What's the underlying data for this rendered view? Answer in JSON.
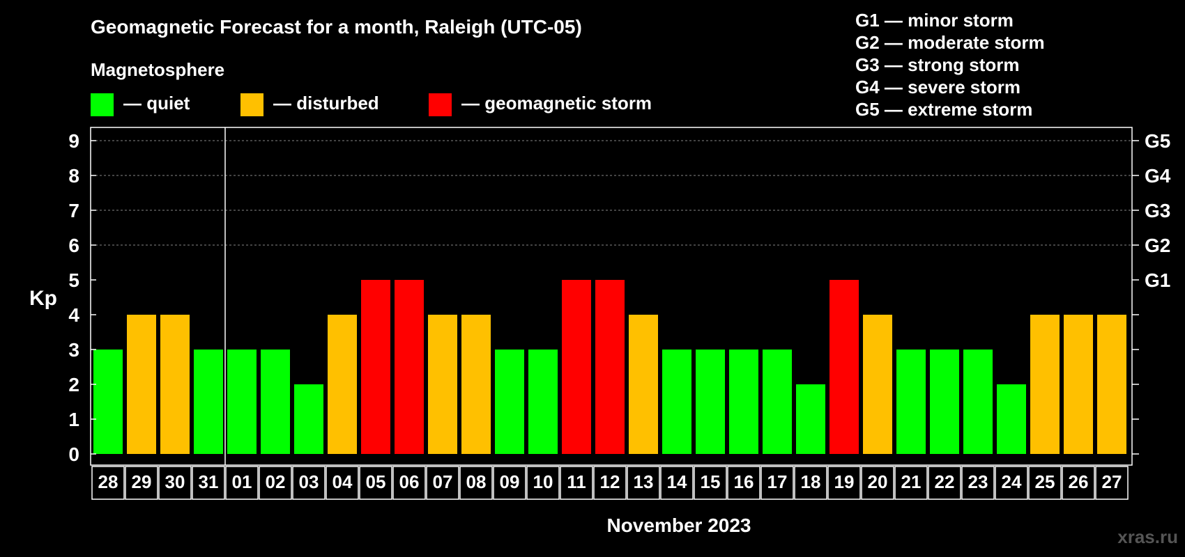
{
  "chart_data": {
    "type": "bar",
    "title": "Geomagnetic Forecast for a month, Raleigh (UTC-05)",
    "legend_title": "Magnetosphere",
    "legend": [
      {
        "label": "— quiet",
        "color": "#00ff00",
        "status": "quiet"
      },
      {
        "label": "— disturbed",
        "color": "#ffc000",
        "status": "disturbed"
      },
      {
        "label": "— geomagnetic storm",
        "color": "#ff0000",
        "status": "storm"
      }
    ],
    "storm_scale": [
      "G1 — minor storm",
      "G2 — moderate storm",
      "G3 — strong storm",
      "G4 — severe storm",
      "G5 — extreme storm"
    ],
    "ylabel": "Kp",
    "ylim": [
      0,
      9
    ],
    "yticks": [
      "0",
      "1",
      "2",
      "3",
      "4",
      "5",
      "6",
      "7",
      "8",
      "9"
    ],
    "right_ticks": [
      {
        "kp": 5,
        "label": "G1"
      },
      {
        "kp": 6,
        "label": "G2"
      },
      {
        "kp": 7,
        "label": "G3"
      },
      {
        "kp": 8,
        "label": "G4"
      },
      {
        "kp": 9,
        "label": "G5"
      }
    ],
    "xlabel": "November 2023",
    "categories": [
      "28",
      "29",
      "30",
      "31",
      "01",
      "02",
      "03",
      "04",
      "05",
      "06",
      "07",
      "08",
      "09",
      "10",
      "11",
      "12",
      "13",
      "14",
      "15",
      "16",
      "17",
      "18",
      "19",
      "20",
      "21",
      "22",
      "23",
      "24",
      "25",
      "26",
      "27"
    ],
    "values": [
      3,
      4,
      4,
      3,
      3,
      3,
      2,
      4,
      5,
      5,
      4,
      4,
      3,
      3,
      5,
      5,
      4,
      3,
      3,
      3,
      3,
      2,
      5,
      4,
      3,
      3,
      3,
      2,
      4,
      4,
      4
    ],
    "month_divider_after": "31",
    "grid": "dashed, Kp 6–9"
  },
  "watermark": "xras.ru"
}
